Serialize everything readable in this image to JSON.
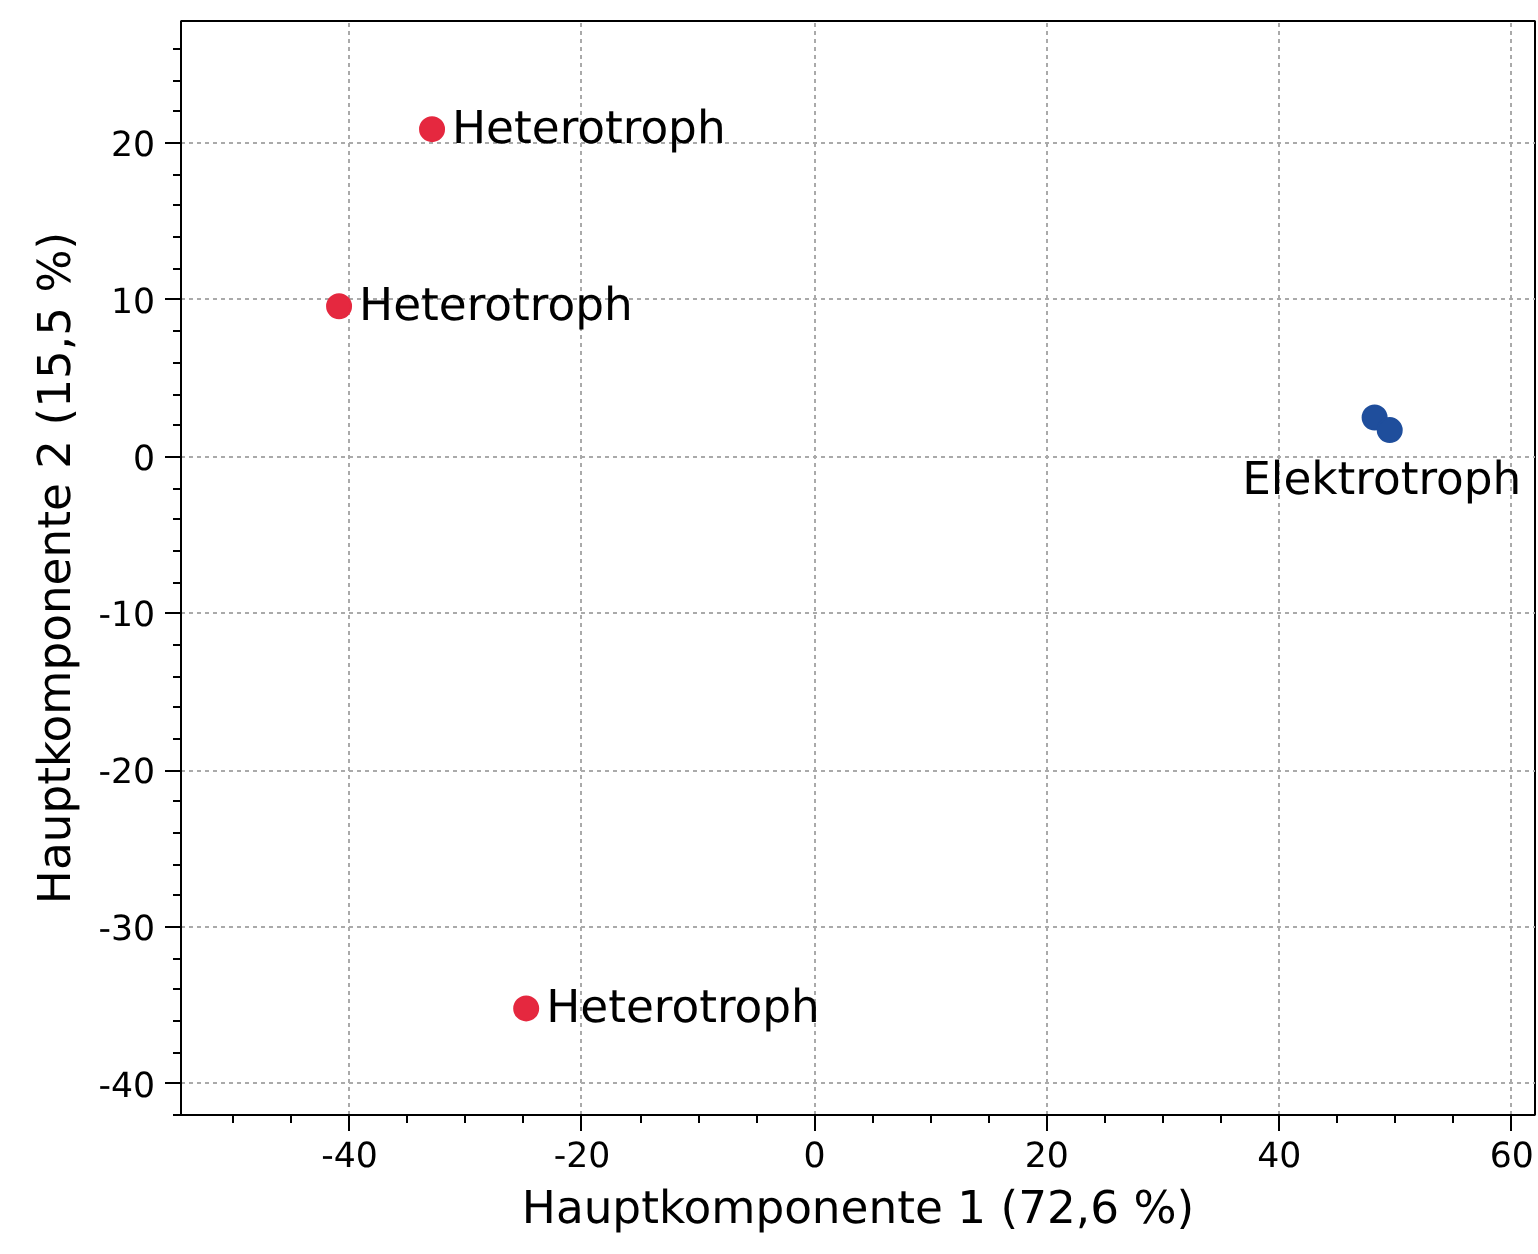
{
  "chart_data": {
    "type": "scatter",
    "xlabel": "Hauptkomponente 1 (72,6 %)",
    "ylabel": "Hauptkomponente 2 (15,5 %)",
    "series": [
      {
        "color": "#e5283f",
        "x": [
          -32.9,
          -40.9,
          -24.8
        ],
        "values": [
          20.9,
          9.6,
          -35.2
        ]
      },
      {
        "color": "#1f4e9c",
        "x": [
          48.2,
          49.5
        ],
        "values": [
          2.5,
          1.7
        ]
      }
    ],
    "annotations": [
      {
        "text": "Heterotroph",
        "x": -32.9,
        "y": 20.9
      },
      {
        "text": "Heterotroph",
        "x": -40.9,
        "y": 9.6
      },
      {
        "text": "Heterotroph",
        "x": -24.8,
        "y": -35.2
      },
      {
        "text": "Elektrotroph",
        "x": 49.5,
        "y": 1.7
      }
    ],
    "xlim": [
      -54.5,
      62
    ],
    "ylim": [
      -42,
      27.8
    ],
    "xticks": [
      -40,
      -20,
      0,
      20,
      40,
      60
    ],
    "yticks": [
      -40,
      -30,
      -20,
      -10,
      0,
      10,
      20
    ],
    "grid": true,
    "marker": "circle"
  }
}
